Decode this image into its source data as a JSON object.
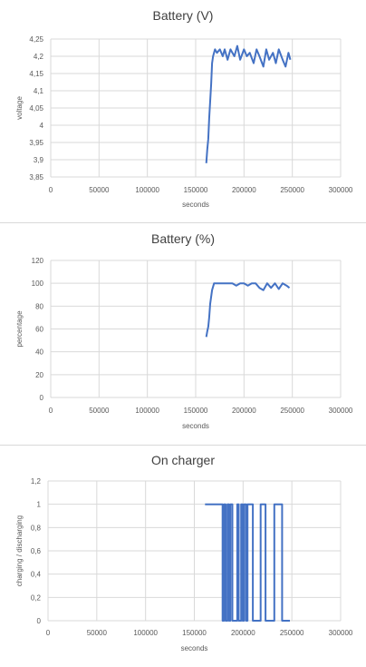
{
  "chart_data": [
    {
      "type": "line",
      "title": "Battery (V)",
      "xlabel": "seconds",
      "ylabel": "voltage",
      "xlim": [
        0,
        300000
      ],
      "ylim": [
        3.85,
        4.25
      ],
      "x_ticks": [
        "0",
        "50000",
        "100000",
        "150000",
        "200000",
        "250000",
        "300000"
      ],
      "y_ticks": [
        "3,85",
        "3,9",
        "3,95",
        "4",
        "4,05",
        "4,1",
        "4,15",
        "4,2",
        "4,25"
      ],
      "grid": true,
      "legend": "none",
      "color": "#4472C4",
      "series": [
        {
          "x": [
            161000,
            162000,
            163000,
            164000,
            165000,
            166000,
            167000,
            168000,
            170000,
            172000,
            175000,
            178000,
            180000,
            183000,
            186000,
            190000,
            193000,
            196000,
            200000,
            203000,
            206000,
            210000,
            213000,
            216000,
            220000,
            223000,
            226000,
            230000,
            233000,
            236000,
            240000,
            243000,
            246000,
            248000
          ],
          "y": [
            3.89,
            3.93,
            3.96,
            4.02,
            4.07,
            4.12,
            4.18,
            4.2,
            4.22,
            4.21,
            4.22,
            4.2,
            4.22,
            4.19,
            4.22,
            4.2,
            4.23,
            4.19,
            4.22,
            4.2,
            4.21,
            4.18,
            4.22,
            4.2,
            4.17,
            4.22,
            4.19,
            4.21,
            4.18,
            4.22,
            4.19,
            4.17,
            4.21,
            4.19
          ]
        }
      ]
    },
    {
      "type": "line",
      "title": "Battery (%)",
      "xlabel": "seconds",
      "ylabel": "percentage",
      "xlim": [
        0,
        300000
      ],
      "ylim": [
        0,
        120
      ],
      "x_ticks": [
        "0",
        "50000",
        "100000",
        "150000",
        "200000",
        "250000",
        "300000"
      ],
      "y_ticks": [
        "0",
        "20",
        "40",
        "60",
        "80",
        "100",
        "120"
      ],
      "grid": true,
      "legend": "none",
      "color": "#4472C4",
      "series": [
        {
          "x": [
            161000,
            162000,
            163000,
            164000,
            165000,
            167000,
            169000,
            172000,
            176000,
            180000,
            184000,
            188000,
            192000,
            196000,
            200000,
            204000,
            208000,
            212000,
            216000,
            220000,
            224000,
            228000,
            232000,
            236000,
            240000,
            244000,
            247000
          ],
          "y": [
            53,
            58,
            62,
            70,
            82,
            94,
            100,
            100,
            100,
            100,
            100,
            100,
            98,
            100,
            100,
            98,
            100,
            100,
            96,
            94,
            100,
            96,
            100,
            95,
            100,
            98,
            96
          ]
        }
      ]
    },
    {
      "type": "line",
      "title": "On charger",
      "xlabel": "seconds",
      "ylabel": "charging / discharging",
      "xlim": [
        0,
        300000
      ],
      "ylim": [
        0,
        1.2
      ],
      "x_ticks": [
        "0",
        "50000",
        "100000",
        "150000",
        "200000",
        "250000",
        "300000"
      ],
      "y_ticks": [
        "0",
        "0,2",
        "0,4",
        "0,6",
        "0,8",
        "1",
        "1,2"
      ],
      "grid": true,
      "legend": "none",
      "color": "#4472C4",
      "series": [
        {
          "x": [
            161000,
            179000,
            179000,
            180500,
            180500,
            182000,
            182000,
            184000,
            184000,
            185500,
            185500,
            187000,
            187000,
            189000,
            189000,
            194000,
            194000,
            195500,
            195500,
            198000,
            198000,
            199500,
            199500,
            201000,
            201000,
            203000,
            203000,
            204500,
            204500,
            210000,
            210000,
            218000,
            218000,
            223000,
            223000,
            232000,
            232000,
            240000,
            240000,
            248000
          ],
          "y": [
            1,
            1,
            0,
            0,
            1,
            1,
            0,
            0,
            1,
            1,
            0,
            0,
            1,
            1,
            0,
            0,
            1,
            1,
            0,
            0,
            1,
            1,
            0,
            0,
            1,
            1,
            0,
            0,
            1,
            1,
            0,
            0,
            1,
            1,
            0,
            0,
            1,
            1,
            0,
            0
          ]
        }
      ]
    }
  ]
}
